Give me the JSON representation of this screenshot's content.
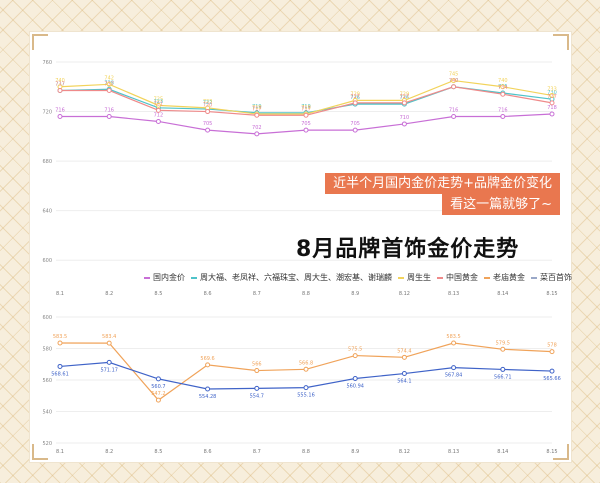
{
  "banner": {
    "line1": "近半个月国内金价走势+品牌金价变化",
    "line2": "看这一篇就够了~"
  },
  "headline": "8月品牌首饰金价走势",
  "legend": [
    {
      "label": "国内金价",
      "color": "#c86fd6"
    },
    {
      "label": "周大福、老凤祥、六福珠宝、周大生、潮宏基、谢瑞麟",
      "color": "#4fc3c9"
    },
    {
      "label": "周生生",
      "color": "#f2d35b"
    },
    {
      "label": "中国黄金",
      "color": "#ef8a8a"
    },
    {
      "label": "老庙黄金",
      "color": "#f0a35a"
    },
    {
      "label": "菜百首饰",
      "color": "#9aa8c8"
    }
  ],
  "chart_data": [
    {
      "type": "line",
      "ylim": [
        580,
        760
      ],
      "yticks": [
        760,
        720,
        680,
        640,
        600
      ],
      "categories": [
        "8.1",
        "8.2",
        "8.5",
        "8.6",
        "8.7",
        "8.8",
        "8.9",
        "8.12",
        "8.13",
        "8.14",
        "8.15"
      ],
      "series": [
        {
          "name": "国内金价",
          "color": "#c86fd6",
          "values": [
            716,
            716,
            712,
            705,
            702,
            705,
            705,
            710,
            716,
            716,
            718
          ]
        },
        {
          "name": "周大福、老凤祥、六福珠宝、周大生、潮宏基、谢瑞麟",
          "color": "#4fc3c9",
          "values": [
            737,
            738,
            723,
            722,
            719,
            719,
            726,
            726,
            740,
            735,
            730
          ]
        },
        {
          "name": "周生生",
          "color": "#f2d35b",
          "values": [
            740,
            742,
            725,
            723,
            718,
            718,
            729,
            729,
            745,
            740,
            733
          ]
        },
        {
          "name": "中国黄金",
          "color": "#ef8a8a",
          "values": [
            737,
            737,
            721,
            720,
            717,
            717,
            727,
            727,
            740,
            734,
            727
          ]
        }
      ]
    },
    {
      "type": "line",
      "ylim": [
        520,
        600
      ],
      "yticks": [
        600,
        580,
        560,
        540,
        520
      ],
      "categories": [
        "8.1",
        "8.2",
        "8.5",
        "8.6",
        "8.7",
        "8.8",
        "8.9",
        "8.12",
        "8.13",
        "8.14",
        "8.15"
      ],
      "series": [
        {
          "name": "老庙黄金",
          "color": "#f0a35a",
          "values": [
            583.5,
            583.4,
            547.2,
            569.6,
            566,
            566.8,
            575.5,
            574.4,
            583.5,
            579.5,
            578
          ]
        },
        {
          "name": "菜百首饰",
          "color": "#3f63c8",
          "values": [
            568.61,
            571.17,
            560.7,
            554.28,
            554.7,
            555.16,
            560.94,
            564.1,
            567.84,
            566.71,
            565.66
          ]
        }
      ]
    }
  ]
}
